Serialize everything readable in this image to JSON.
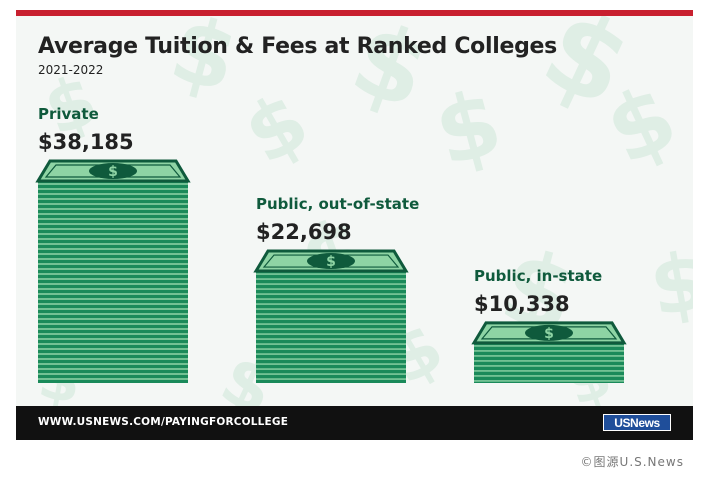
{
  "header": {
    "title": "Average Tuition & Fees at Ranked Colleges",
    "subtitle": "2021-2022"
  },
  "chart_data": {
    "type": "bar",
    "title": "Average Tuition & Fees at Ranked Colleges",
    "subtitle": "2021-2022",
    "categories": [
      "Private",
      "Public, out-of-state",
      "Public, in-state"
    ],
    "values": [
      38185,
      22698,
      10338
    ],
    "value_labels": [
      "$38,185",
      "$22,698",
      "$10,338"
    ],
    "xlabel": "",
    "ylabel": "",
    "grid": false,
    "legend": "none",
    "mark_style": "stacks of dollar bills"
  },
  "footer": {
    "url": "WWW.USNEWS.COM/PAYINGFORCOLLEGE",
    "logo": "USNews"
  },
  "credit": "©图源U.S.News",
  "colors": {
    "accent_red": "#c8202f",
    "dark_green": "#0f5a3c",
    "money_green": "#1a8a5a",
    "stripe_light": "#8fd3a8",
    "bill_face": "#8ed4a4",
    "footer_bg": "#111111",
    "logo_bg": "#1f4e9a",
    "title_text": "#222222"
  },
  "icons": {
    "bill_center": "dollar-sign-icon",
    "background": "dollar-sign-pattern"
  }
}
